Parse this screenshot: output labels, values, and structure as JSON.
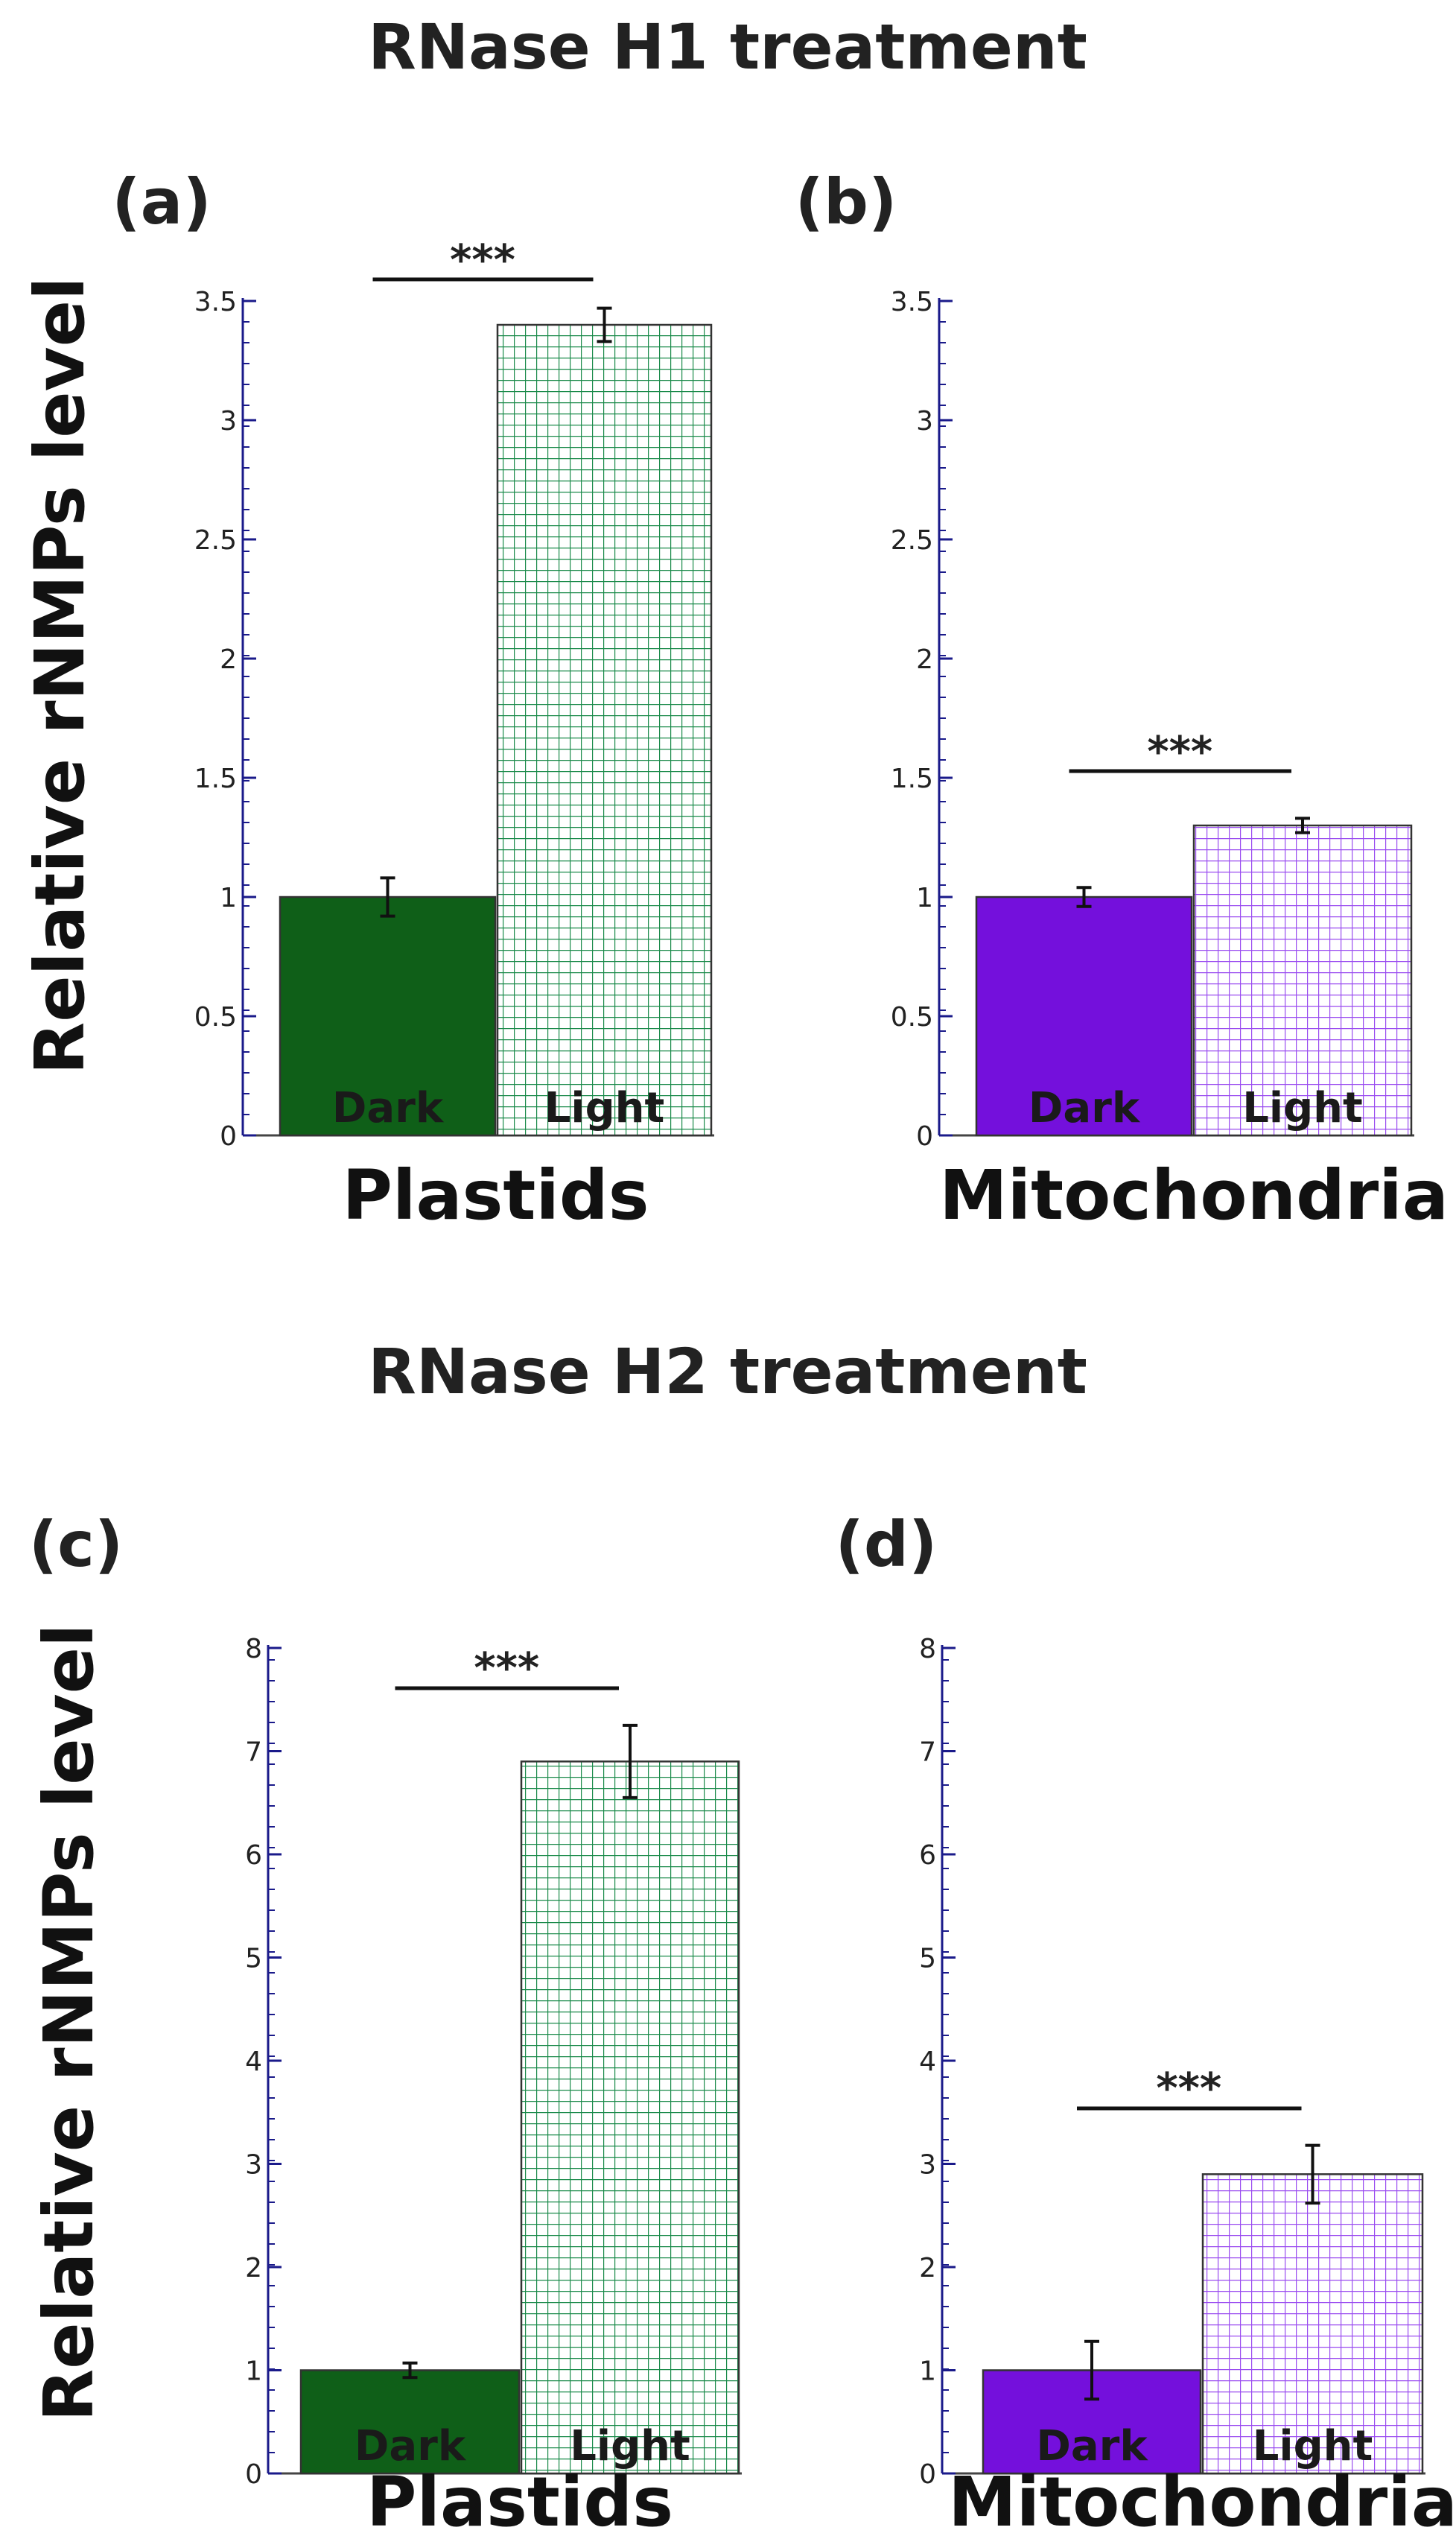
{
  "sections": [
    {
      "title": "RNase H1 treatment"
    },
    {
      "title": "RNase H2 treatment"
    }
  ],
  "ylabel": "Relative rNMPs level",
  "colors": {
    "plastid": "#0f5f18",
    "plastid_grid": "#1a8a4a",
    "mito": "#7410dc",
    "mito_grid": "#9a4cf0",
    "axis": "#1a1a8a"
  },
  "chart_data": [
    {
      "type": "bar",
      "panel": "(a)",
      "xlabel": "Plastids",
      "categories": [
        "Dark",
        "Light"
      ],
      "values": [
        1.0,
        3.4
      ],
      "errors": [
        0.08,
        0.07
      ],
      "ylim": [
        0,
        3.5
      ],
      "yticks": [
        "0",
        "0.5",
        "1",
        "1.5",
        "2",
        "2.5",
        "3",
        "3.5"
      ],
      "significance": "***",
      "organelle": "plastid"
    },
    {
      "type": "bar",
      "panel": "(b)",
      "xlabel": "Mitochondria",
      "categories": [
        "Dark",
        "Light"
      ],
      "values": [
        1.0,
        1.3
      ],
      "errors": [
        0.04,
        0.03
      ],
      "ylim": [
        0,
        3.5
      ],
      "yticks": [
        "0",
        "0.5",
        "1",
        "1.5",
        "2",
        "2.5",
        "3",
        "3.5"
      ],
      "significance": "***",
      "organelle": "mito"
    },
    {
      "type": "bar",
      "panel": "(c)",
      "xlabel": "Plastids",
      "categories": [
        "Dark",
        "Light"
      ],
      "values": [
        1.0,
        6.9
      ],
      "errors": [
        0.07,
        0.35
      ],
      "ylim": [
        0,
        8
      ],
      "yticks": [
        "0",
        "1",
        "2",
        "3",
        "4",
        "5",
        "6",
        "7",
        "8"
      ],
      "significance": "***",
      "organelle": "plastid"
    },
    {
      "type": "bar",
      "panel": "(d)",
      "xlabel": "Mitochondria",
      "categories": [
        "Dark",
        "Light"
      ],
      "values": [
        1.0,
        2.9
      ],
      "errors": [
        0.28,
        0.28
      ],
      "ylim": [
        0,
        8
      ],
      "yticks": [
        "0",
        "1",
        "2",
        "3",
        "4",
        "5",
        "6",
        "7",
        "8"
      ],
      "significance": "***",
      "organelle": "mito"
    }
  ]
}
